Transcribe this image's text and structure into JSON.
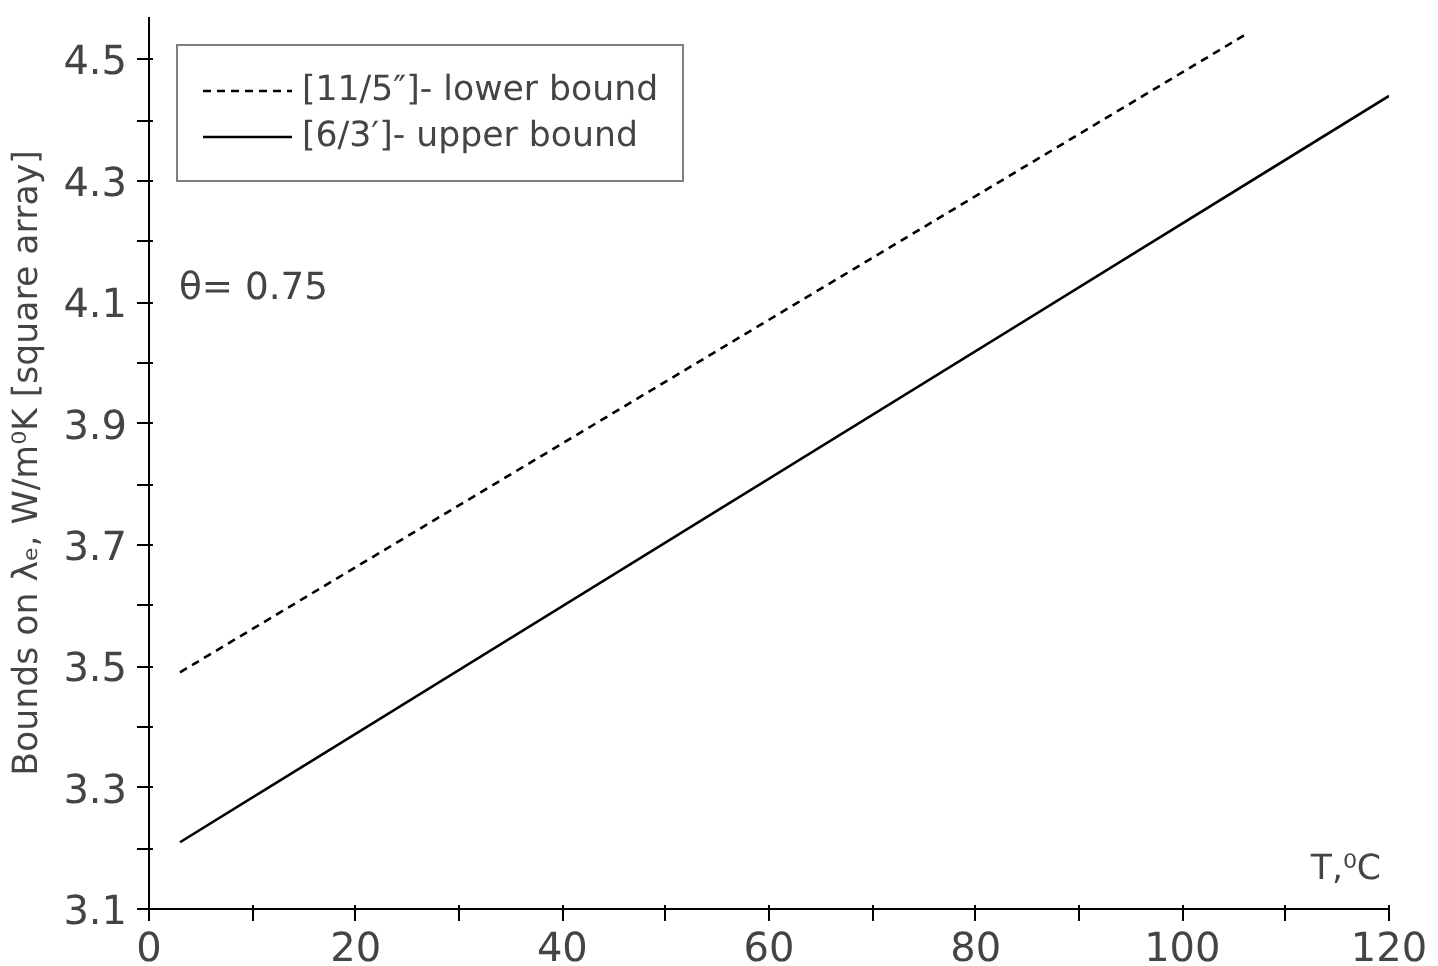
{
  "chart_data": {
    "type": "line",
    "xlabel": "T,⁰C",
    "ylabel": "Bounds on λₑ, W/m⁰K [square array]",
    "annotations": [
      "θ= 0.75"
    ],
    "series": [
      {
        "name": "[11/5″]- lower bound",
        "color": "#000000",
        "line_style": "dashed",
        "x": [
          3,
          106
        ],
        "values": [
          3.49,
          4.54
        ]
      },
      {
        "name": "[6/3′]- upper bound",
        "color": "#000000",
        "line_style": "solid",
        "x": [
          3,
          120
        ],
        "values": [
          3.21,
          4.44
        ]
      }
    ],
    "xlim": [
      0,
      120
    ],
    "ylim": [
      3.1,
      4.57
    ],
    "xticks": [
      0,
      {
        "value": 10,
        "label": null
      },
      20,
      {
        "value": 30,
        "label": null
      },
      40,
      {
        "value": 50,
        "label": null
      },
      60,
      {
        "value": 70,
        "label": null
      },
      80,
      {
        "value": 90,
        "label": null
      },
      100,
      {
        "value": 110,
        "label": null
      },
      120
    ],
    "yticks": [
      3.1,
      {
        "value": 3.2,
        "label": null
      },
      3.3,
      {
        "value": 3.4,
        "label": null
      },
      3.5,
      {
        "value": 3.6,
        "label": null
      },
      3.7,
      {
        "value": 3.8,
        "label": null
      },
      3.9,
      {
        "value": 4.0,
        "label": null
      },
      4.1,
      {
        "value": 4.2,
        "label": null
      },
      4.3,
      {
        "value": 4.4,
        "label": null
      },
      4.5
    ],
    "grid": false,
    "legend": "top left",
    "marker": "none"
  }
}
